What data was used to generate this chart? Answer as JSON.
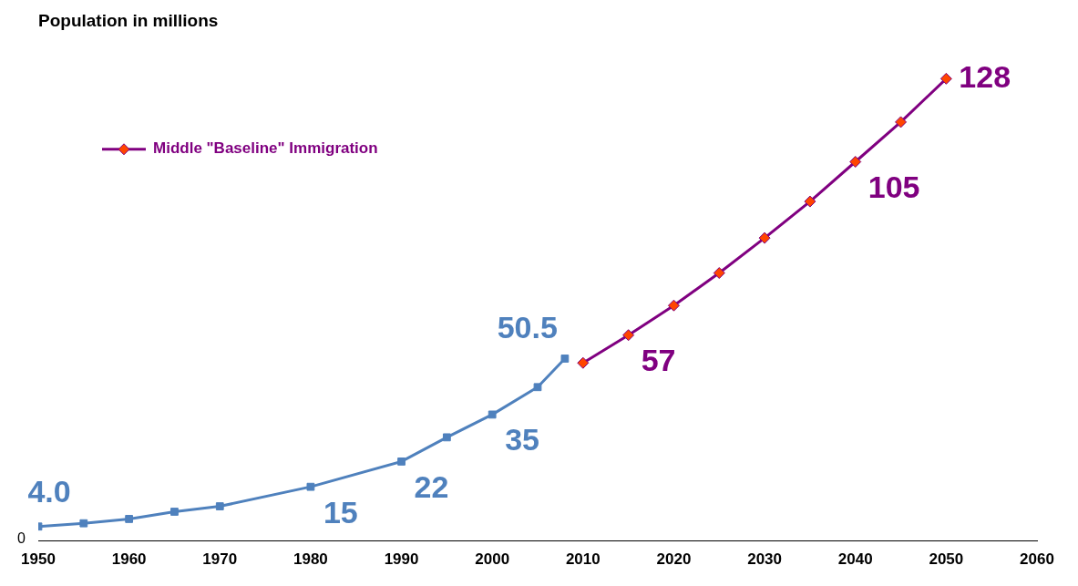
{
  "chart_data": {
    "type": "line",
    "title": "Population in millions",
    "annotations": [
      "0"
    ],
    "xlim": [
      1950,
      2060
    ],
    "xticks": [
      1950,
      1960,
      1970,
      1980,
      1990,
      2000,
      2010,
      2020,
      2030,
      2040,
      2050,
      2060
    ],
    "grid": false,
    "legend": "top left",
    "series": [
      {
        "color": "#4f81bd",
        "marker": "square",
        "x": [
          1950,
          1955,
          1960,
          1965,
          1970,
          1980,
          1990,
          1995,
          2000,
          2005,
          2008
        ],
        "values": [
          4.0,
          4.9,
          6.1,
          8.1,
          9.6,
          15,
          22,
          28.7,
          35,
          42.6,
          50.5
        ],
        "value_labels": [
          "4.0",
          null,
          null,
          null,
          null,
          "15",
          "22",
          null,
          "35",
          null,
          "50.5"
        ]
      },
      {
        "name": "Middle \"Baseline\" Immigration",
        "color": "#800080",
        "marker": "diamond",
        "x": [
          2010,
          2015,
          2020,
          2025,
          2030,
          2035,
          2040,
          2045,
          2050
        ],
        "values": [
          49.3,
          57,
          65.2,
          74.2,
          83.9,
          94,
          105,
          116,
          128
        ],
        "value_labels": [
          null,
          "57",
          null,
          null,
          null,
          null,
          "105",
          null,
          "128"
        ]
      }
    ]
  }
}
